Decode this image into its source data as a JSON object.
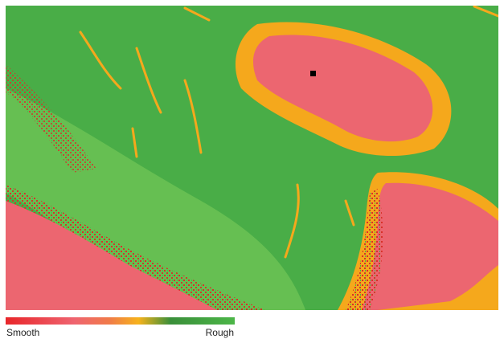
{
  "legend": {
    "min_label": "Smooth",
    "max_label": "Rough"
  }
}
